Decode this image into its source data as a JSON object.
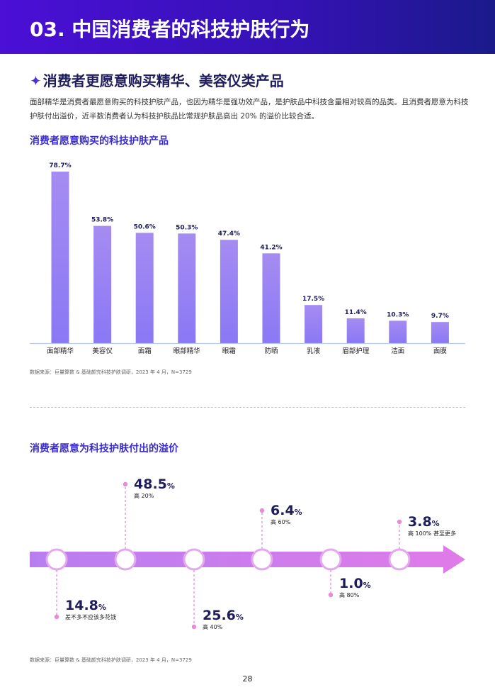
{
  "header": {
    "title": "03. 中国消费者的科技护肤行为"
  },
  "section": {
    "icon": "sparkle-icon",
    "title": "消费者更愿意购买精华、美容仪类产品",
    "intro": "面部精华是消费者最愿意购买的科技护肤产品，也因为精华是强功效产品，是护肤品中科技含量相对较高的品类。且消费者愿意为科技护肤付出溢价，近半数消费者认为科技护肤品比常规护肤品高出 20% 的溢价比较合适。"
  },
  "chart_title": "消费者愿意购买的科技护肤产品",
  "chart_data": {
    "type": "bar",
    "categories": [
      "面部精华",
      "美容仪",
      "面霜",
      "眼部精华",
      "眼霜",
      "防晒",
      "乳液",
      "眉部护理",
      "洁面",
      "面膜"
    ],
    "values": [
      78.7,
      53.8,
      50.6,
      50.3,
      47.4,
      41.2,
      17.5,
      11.4,
      10.3,
      9.7
    ],
    "data_labels": [
      "78.7%",
      "53.8%",
      "50.6%",
      "50.3%",
      "47.4%",
      "41.2%",
      "17.5%",
      "11.4%",
      "10.3%",
      "9.7%"
    ],
    "ylim": [
      0,
      80
    ],
    "colors": {
      "bar_top": "#a58cf2",
      "bar_bottom": "#8a78f5",
      "label": "#1f1d5c",
      "axis": "#b9c8ee"
    }
  },
  "source_1": "数据来源：巨量算数 & 基础颜究科技护肤调研，2023 年 4 月，N=3729",
  "timeline_title": "消费者愿意为科技护肤付出的溢价",
  "timeline": {
    "points": [
      {
        "value": "14.8",
        "unit": "%",
        "label": "差不多不应该多花钱",
        "position": "below"
      },
      {
        "value": "48.5",
        "unit": "%",
        "label": "高 20%",
        "position": "above"
      },
      {
        "value": "25.6",
        "unit": "%",
        "label": "高 40%",
        "position": "below"
      },
      {
        "value": "6.4",
        "unit": "%",
        "label": "高 60%",
        "position": "above"
      },
      {
        "value": "1.0",
        "unit": "%",
        "label": "高 80%",
        "position": "below"
      },
      {
        "value": "3.8",
        "unit": "%",
        "label": "高 100% 甚至更多",
        "position": "above"
      }
    ],
    "colors": {
      "arrow_left": "#b87ef0",
      "arrow_right": "#e07be8",
      "dot": "#e88ad8",
      "value": "#1f1d5c"
    }
  },
  "source_2": "数据来源：巨量算数 & 基础颜究科技护肤调研，2023 年 4 月，N=3729",
  "page_number": "28"
}
